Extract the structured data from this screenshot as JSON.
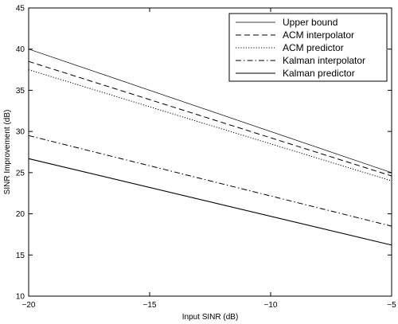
{
  "chart_data": {
    "type": "line",
    "title": "",
    "xlabel": "Input SINR (dB)",
    "ylabel": "SINR Improvement (dB)",
    "xlim": [
      -20,
      -5
    ],
    "ylim": [
      10,
      45
    ],
    "xticks": [
      -20,
      -15,
      -10,
      -5
    ],
    "xtick_labels": [
      "−20",
      "−15",
      "−10",
      "−5"
    ],
    "yticks": [
      10,
      15,
      20,
      25,
      30,
      35,
      40,
      45
    ],
    "grid": false,
    "legend_position": "top-right",
    "series": [
      {
        "name": "Upper bound",
        "style": "thin-solid",
        "x": [
          -20,
          -5
        ],
        "y": [
          40.0,
          25.0
        ]
      },
      {
        "name": "ACM interpolator",
        "style": "dashed",
        "x": [
          -20,
          -5
        ],
        "y": [
          38.5,
          24.6
        ]
      },
      {
        "name": "ACM predictor",
        "style": "dotted",
        "x": [
          -20,
          -5
        ],
        "y": [
          37.5,
          24.0
        ]
      },
      {
        "name": "Kalman interpolator",
        "style": "dash-dot",
        "x": [
          -20,
          -5
        ],
        "y": [
          29.5,
          18.5
        ]
      },
      {
        "name": "Kalman predictor",
        "style": "solid",
        "x": [
          -20,
          -5
        ],
        "y": [
          26.7,
          16.2
        ]
      }
    ]
  },
  "colors": {
    "line": "#000000",
    "background": "#ffffff"
  }
}
